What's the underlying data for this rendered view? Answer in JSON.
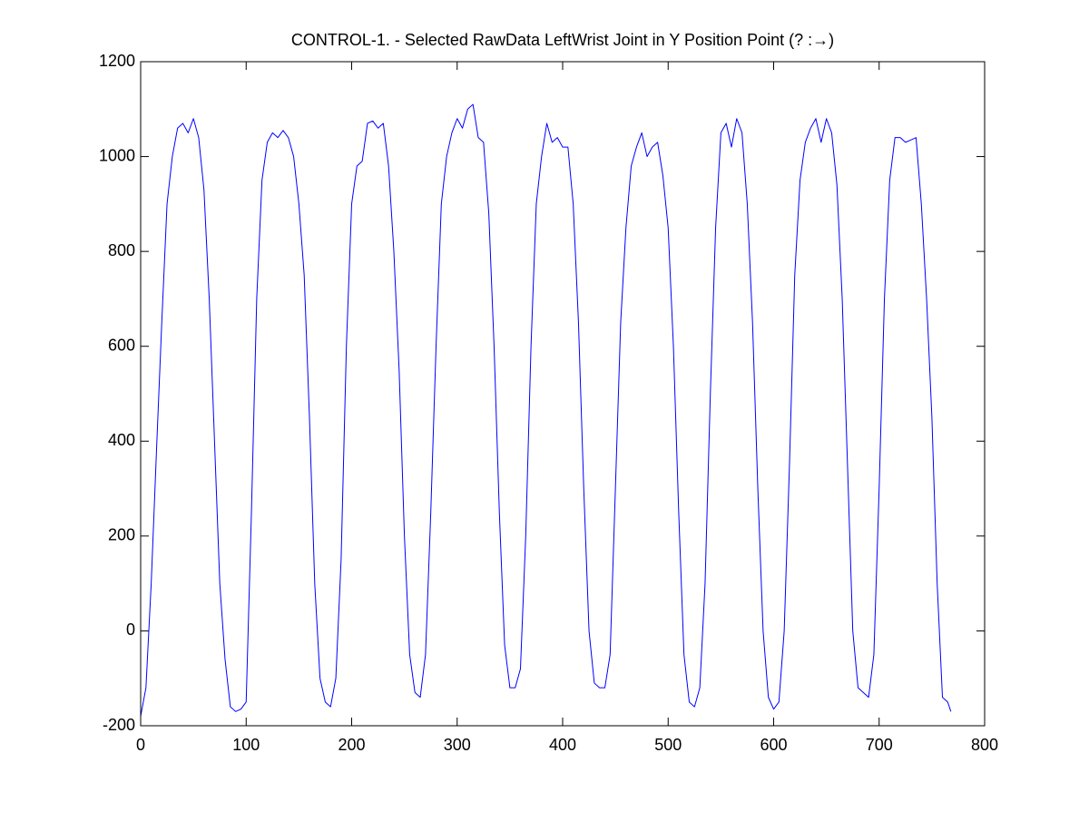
{
  "chart_data": {
    "type": "line",
    "title": "CONTROL-1. - Selected RawData LeftWrist Joint in Y Position Point (? :→)",
    "color": "#0000ff",
    "x": [
      0,
      5,
      10,
      15,
      20,
      25,
      30,
      35,
      40,
      45,
      50,
      55,
      60,
      65,
      70,
      75,
      80,
      85,
      90,
      95,
      100,
      105,
      110,
      115,
      120,
      125,
      130,
      135,
      140,
      145,
      150,
      155,
      160,
      165,
      170,
      175,
      180,
      185,
      190,
      195,
      200,
      205,
      210,
      215,
      220,
      225,
      230,
      235,
      240,
      245,
      250,
      255,
      260,
      265,
      270,
      275,
      280,
      285,
      290,
      295,
      300,
      305,
      310,
      315,
      320,
      325,
      330,
      335,
      340,
      345,
      350,
      355,
      360,
      365,
      370,
      375,
      380,
      385,
      390,
      395,
      400,
      405,
      410,
      415,
      420,
      425,
      430,
      435,
      440,
      445,
      450,
      455,
      460,
      465,
      470,
      475,
      480,
      485,
      490,
      495,
      500,
      505,
      510,
      515,
      520,
      525,
      530,
      535,
      540,
      545,
      550,
      555,
      560,
      565,
      570,
      575,
      580,
      585,
      590,
      595,
      600,
      605,
      610,
      615,
      620,
      625,
      630,
      635,
      640,
      645,
      650,
      655,
      660,
      665,
      670,
      675,
      680,
      685,
      690,
      695,
      700,
      705,
      710,
      715,
      720,
      725,
      730,
      735,
      740,
      745,
      750,
      755,
      760,
      765,
      768
    ],
    "values": [
      -180,
      -120,
      100,
      380,
      650,
      900,
      1000,
      1060,
      1070,
      1050,
      1080,
      1040,
      930,
      700,
      400,
      100,
      -60,
      -160,
      -170,
      -165,
      -150,
      250,
      700,
      950,
      1030,
      1050,
      1040,
      1055,
      1040,
      1000,
      900,
      750,
      450,
      100,
      -100,
      -150,
      -160,
      -100,
      150,
      600,
      900,
      980,
      990,
      1070,
      1075,
      1060,
      1070,
      980,
      800,
      550,
      200,
      -50,
      -130,
      -140,
      -50,
      250,
      600,
      900,
      1000,
      1050,
      1080,
      1060,
      1100,
      1110,
      1040,
      1030,
      880,
      600,
      250,
      -30,
      -120,
      -120,
      -80,
      200,
      600,
      900,
      1000,
      1070,
      1030,
      1040,
      1020,
      1020,
      900,
      650,
      300,
      0,
      -110,
      -120,
      -120,
      -50,
      300,
      650,
      850,
      980,
      1020,
      1050,
      1000,
      1020,
      1030,
      960,
      850,
      600,
      250,
      -50,
      -150,
      -160,
      -120,
      100,
      500,
      850,
      1050,
      1070,
      1020,
      1080,
      1050,
      900,
      650,
      300,
      0,
      -140,
      -165,
      -150,
      0,
      350,
      750,
      950,
      1030,
      1060,
      1080,
      1030,
      1080,
      1050,
      940,
      700,
      350,
      0,
      -120,
      -130,
      -140,
      -50,
      300,
      700,
      950,
      1040,
      1040,
      1030,
      1035,
      1040,
      900,
      700,
      450,
      100,
      -140,
      -150,
      -170
    ],
    "xlim": [
      0,
      800
    ],
    "xticks": [
      0,
      100,
      200,
      300,
      400,
      500,
      600,
      700,
      800
    ],
    "ylim": [
      -200,
      1200
    ],
    "yticks": [
      -200,
      0,
      200,
      400,
      600,
      800,
      1000,
      1200
    ]
  }
}
